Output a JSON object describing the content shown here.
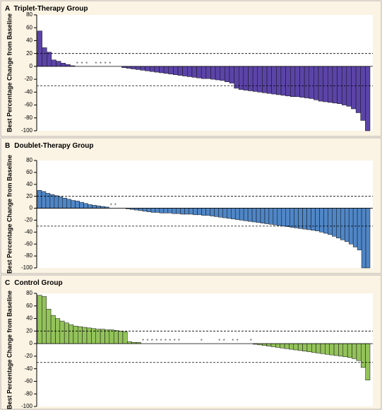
{
  "chart_data": [
    {
      "type": "bar",
      "panel_letter": "A",
      "title": "Triplet-Therapy Group",
      "ylabel": "Best Percentage Change from Baseline",
      "ylim": [
        -100,
        80
      ],
      "yticks": [
        80,
        60,
        40,
        20,
        0,
        -20,
        -40,
        -60,
        -80,
        -100
      ],
      "reference_lines": [
        20,
        -30
      ],
      "color": "#5b44a8",
      "values": [
        55,
        29,
        22,
        10,
        8,
        5,
        3,
        1,
        0,
        0,
        0,
        0,
        0,
        0,
        0,
        0,
        0,
        0,
        -2,
        -3,
        -4,
        -5,
        -6,
        -7,
        -8,
        -9,
        -10,
        -11,
        -12,
        -13,
        -14,
        -15,
        -16,
        -17,
        -18,
        -19,
        -19,
        -20,
        -21,
        -22,
        -24,
        -26,
        -34,
        -36,
        -37,
        -38,
        -39,
        -40,
        -41,
        -42,
        -43,
        -44,
        -45,
        -46,
        -47,
        -47,
        -48,
        -49,
        -50,
        -52,
        -54,
        -55,
        -56,
        -57,
        -58,
        -60,
        -62,
        -66,
        -72,
        -84,
        -100
      ],
      "markers": [
        "",
        "",
        "",
        "",
        "",
        "",
        "",
        "",
        "*",
        "*",
        "*",
        "",
        "*",
        "*",
        "*",
        "*",
        "",
        "",
        "",
        "",
        "",
        "",
        "",
        "",
        "",
        "",
        "",
        "",
        "",
        "",
        "",
        "",
        "",
        "",
        "",
        "",
        "",
        "",
        "",
        "",
        "",
        "",
        "",
        "",
        "",
        "",
        "",
        "",
        "",
        "",
        "",
        "",
        "",
        "",
        "",
        "",
        "",
        "",
        "",
        "",
        "",
        "",
        "",
        "",
        "",
        "",
        "",
        "",
        "",
        "",
        ""
      ]
    },
    {
      "type": "bar",
      "panel_letter": "B",
      "title": "Doublet-Therapy Group",
      "ylabel": "Best Percentage Change from Baseline",
      "ylim": [
        -100,
        80
      ],
      "yticks": [
        80,
        60,
        40,
        20,
        0,
        -20,
        -40,
        -60,
        -80,
        -100
      ],
      "reference_lines": [
        20,
        -30
      ],
      "color": "#4f86c6",
      "values": [
        30,
        28,
        25,
        23,
        21,
        19,
        17,
        15,
        13,
        12,
        10,
        8,
        6,
        5,
        4,
        3,
        2,
        0,
        0,
        0,
        0,
        -1,
        -2,
        -3,
        -4,
        -5,
        -6,
        -7,
        -7,
        -8,
        -8,
        -8,
        -9,
        -9,
        -10,
        -10,
        -10,
        -11,
        -11,
        -12,
        -12,
        -13,
        -14,
        -15,
        -16,
        -17,
        -18,
        -19,
        -20,
        -21,
        -22,
        -23,
        -24,
        -25,
        -26,
        -27,
        -28,
        -29,
        -30,
        -31,
        -32,
        -33,
        -34,
        -35,
        -36,
        -37,
        -38,
        -40,
        -42,
        -44,
        -47,
        -50,
        -53,
        -56,
        -60,
        -65,
        -70,
        -100,
        -100
      ],
      "markers": [
        "",
        "",
        "",
        "",
        "",
        "",
        "",
        "",
        "",
        "",
        "",
        "",
        "",
        "",
        "",
        "",
        "",
        "*",
        "*",
        "",
        "",
        "",
        "",
        "",
        "",
        "",
        "",
        "",
        "",
        "",
        "",
        "",
        "",
        "",
        "",
        "",
        "",
        "",
        "",
        "",
        "",
        "",
        "",
        "",
        "",
        "",
        "",
        "",
        "",
        "",
        "",
        "",
        "",
        "",
        "",
        "",
        "",
        "",
        "",
        "",
        "",
        "",
        "",
        "",
        "",
        "",
        "",
        "",
        "",
        "",
        "",
        "",
        "",
        "",
        "",
        "",
        "",
        "",
        ""
      ]
    },
    {
      "type": "bar",
      "panel_letter": "C",
      "title": "Control Group",
      "ylabel": "Best Percentage Change from Baseline",
      "ylim": [
        -100,
        80
      ],
      "yticks": [
        80,
        60,
        40,
        20,
        0,
        -20,
        -40,
        -60,
        -80,
        -100
      ],
      "reference_lines": [
        20,
        -30
      ],
      "color": "#93c35a",
      "values": [
        77,
        75,
        55,
        45,
        40,
        36,
        33,
        30,
        28,
        27,
        26,
        25,
        24,
        23,
        23,
        22,
        22,
        21,
        20,
        19,
        3,
        2,
        2,
        0,
        0,
        0,
        0,
        0,
        0,
        0,
        0,
        0,
        0,
        0,
        0,
        0,
        0,
        0,
        0,
        0,
        0,
        0,
        0,
        0,
        0,
        0,
        0,
        0,
        -1,
        -2,
        -3,
        -4,
        -5,
        -6,
        -7,
        -8,
        -9,
        -10,
        -11,
        -12,
        -13,
        -14,
        -15,
        -16,
        -17,
        -18,
        -19,
        -20,
        -21,
        -22,
        -24,
        -27,
        -38,
        -58
      ],
      "markers": [
        "",
        "",
        "",
        "",
        "",
        "",
        "",
        "",
        "",
        "",
        "",
        "",
        "",
        "",
        "",
        "",
        "",
        "",
        "",
        "",
        "",
        "",
        "",
        "*",
        "*",
        "*",
        "*",
        "*",
        "*",
        "*",
        "*",
        "*",
        "",
        "",
        "",
        "",
        "*",
        "",
        "",
        "",
        "*",
        "*",
        "",
        "*",
        "*",
        "",
        "",
        "*",
        "",
        "",
        "",
        "",
        "",
        "",
        "",
        "",
        "",
        "",
        "",
        "",
        "",
        "",
        "",
        "",
        "",
        "",
        "",
        "",
        "",
        "",
        "",
        "",
        "",
        ""
      ]
    }
  ]
}
